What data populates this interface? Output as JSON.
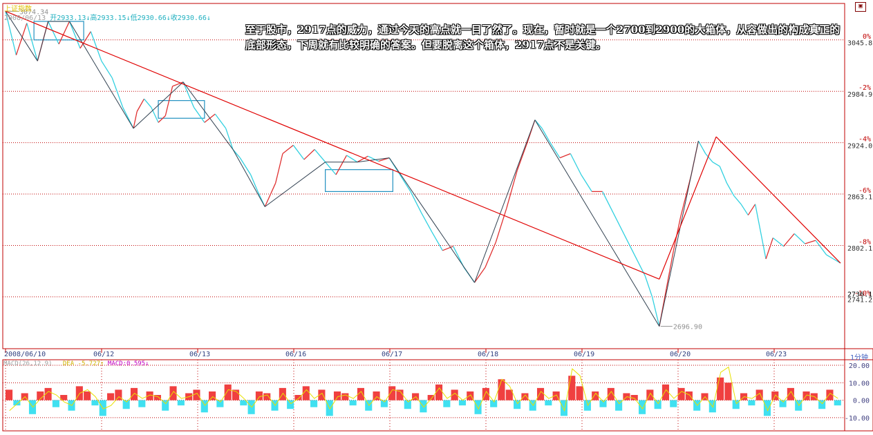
{
  "window": {
    "title": "上证指数",
    "header": {
      "date": "2008/06/13",
      "open": "开2933.13↓",
      "high": "高2933.15↓",
      "low": "低2930.66↓",
      "close": "收2930.66↓"
    },
    "restore_icon": "restore-icon"
  },
  "annotation_text": "至于股市，2917点的威力，通过今天的高点就一目了然了。现在，暂时就是一个2700到2900的大箱体，从容做出的构成真正的底部形态，下周就有比较明确的答案。但要脱离这个箱体，2917点不是关键。",
  "chart_data": {
    "type": "line",
    "title": "上证指数",
    "x_labels": [
      "2008/06/10",
      "06/12",
      "06/13",
      "06/16",
      "06/17",
      "06/18",
      "06/19",
      "06/20",
      "06/23"
    ],
    "y_price_labels": [
      "3045.8",
      "2984.9",
      "2924.0",
      "2863.1",
      "2802.1",
      "2741.2",
      "2736.1"
    ],
    "y_pct_labels": [
      "0%",
      "-2%",
      "-4%",
      "-6%",
      "-8%",
      "-10%"
    ],
    "annotations": {
      "high": "3074.34",
      "low": "2696.90"
    },
    "ylim": [
      2680,
      3080
    ],
    "price_path": [
      [
        0,
        3074
      ],
      [
        3,
        3022
      ],
      [
        6,
        3060
      ],
      [
        9,
        3015
      ],
      [
        12,
        3062
      ],
      [
        15,
        3035
      ],
      [
        18,
        3062
      ],
      [
        21,
        3030
      ],
      [
        24,
        3050
      ],
      [
        27,
        3015
      ],
      [
        30,
        2995
      ],
      [
        33,
        2960
      ],
      [
        36,
        2935
      ],
      [
        37,
        2955
      ],
      [
        39,
        2970
      ],
      [
        41,
        2960
      ],
      [
        43,
        2942
      ],
      [
        45,
        2950
      ],
      [
        47,
        2985
      ],
      [
        50,
        2990
      ],
      [
        53,
        2960
      ],
      [
        56,
        2942
      ],
      [
        59,
        2952
      ],
      [
        62,
        2935
      ],
      [
        64,
        2910
      ],
      [
        66,
        2900
      ],
      [
        69,
        2880
      ],
      [
        71,
        2860
      ],
      [
        73,
        2842
      ],
      [
        76,
        2870
      ],
      [
        78,
        2905
      ],
      [
        81,
        2915
      ],
      [
        84,
        2898
      ],
      [
        87,
        2910
      ],
      [
        90,
        2895
      ],
      [
        93,
        2880
      ],
      [
        96,
        2903
      ],
      [
        99,
        2895
      ],
      [
        102,
        2902
      ],
      [
        105,
        2896
      ],
      [
        108,
        2900
      ],
      [
        111,
        2880
      ],
      [
        114,
        2860
      ],
      [
        117,
        2835
      ],
      [
        120,
        2812
      ],
      [
        123,
        2790
      ],
      [
        126,
        2795
      ],
      [
        129,
        2770
      ],
      [
        132,
        2752
      ],
      [
        135,
        2770
      ],
      [
        138,
        2800
      ],
      [
        141,
        2840
      ],
      [
        144,
        2885
      ],
      [
        147,
        2920
      ],
      [
        149,
        2945
      ],
      [
        151,
        2935
      ],
      [
        153,
        2920
      ],
      [
        156,
        2900
      ],
      [
        159,
        2905
      ],
      [
        162,
        2880
      ],
      [
        165,
        2860
      ],
      [
        168,
        2860
      ],
      [
        171,
        2835
      ],
      [
        174,
        2810
      ],
      [
        177,
        2785
      ],
      [
        180,
        2760
      ],
      [
        182,
        2735
      ],
      [
        184,
        2700
      ],
      [
        186,
        2745
      ],
      [
        188,
        2790
      ],
      [
        190,
        2830
      ],
      [
        193,
        2880
      ],
      [
        195,
        2920
      ],
      [
        197,
        2905
      ],
      [
        199,
        2895
      ],
      [
        201,
        2890
      ],
      [
        203,
        2870
      ],
      [
        205,
        2855
      ],
      [
        207,
        2845
      ],
      [
        209,
        2832
      ],
      [
        211,
        2845
      ],
      [
        214,
        2780
      ],
      [
        216,
        2805
      ],
      [
        219,
        2795
      ],
      [
        222,
        2810
      ],
      [
        225,
        2798
      ],
      [
        228,
        2802
      ],
      [
        231,
        2785
      ],
      [
        233,
        2780
      ],
      [
        235,
        2775
      ]
    ],
    "trend_lines": [
      {
        "color": "#e00000",
        "points": [
          [
            0,
            3074
          ],
          [
            184,
            2756
          ]
        ]
      },
      {
        "color": "#e00000",
        "points": [
          [
            184,
            2756
          ],
          [
            200,
            2925
          ]
        ]
      },
      {
        "color": "#e00000",
        "points": [
          [
            200,
            2925
          ],
          [
            235,
            2775
          ]
        ]
      }
    ],
    "boxes": [
      {
        "x0": 8,
        "x1": 22,
        "y0": 3062,
        "y1": 3040
      },
      {
        "x0": 43,
        "x1": 56,
        "y0": 2968,
        "y1": 2947
      },
      {
        "x0": 90,
        "x1": 109,
        "y0": 2886,
        "y1": 2860
      }
    ],
    "macd": {
      "header_name": "MACD(26,12,9)",
      "dea_label": "DEA -5.727↑",
      "macd_label": "MACD:0.595↓",
      "y_labels": [
        "20.00",
        "10.00",
        "0.00",
        "-10.00"
      ],
      "ylim": [
        -16,
        22
      ],
      "bars": [
        6,
        -3,
        4,
        -8,
        5,
        7,
        -4,
        3,
        -6,
        8,
        5,
        -3,
        -9,
        4,
        6,
        -5,
        7,
        -4,
        5,
        3,
        -6,
        8,
        -3,
        4,
        6,
        -7,
        5,
        -4,
        9,
        6,
        -3,
        -8,
        5,
        4,
        -6,
        7,
        -5,
        3,
        8,
        -4,
        6,
        -9,
        5,
        4,
        -3,
        7,
        -6,
        5,
        -4,
        8,
        6,
        -5,
        4,
        -7,
        3,
        9,
        -4,
        6,
        -3,
        5,
        -8,
        7,
        -4,
        12,
        6,
        -5,
        4,
        -6,
        7,
        -3,
        5,
        -9,
        14,
        8,
        -6,
        5,
        -4,
        7,
        -6,
        4,
        3,
        -8,
        6,
        -5,
        9,
        -4,
        7,
        5,
        -6,
        4,
        -7,
        13,
        10,
        -5,
        4,
        -3,
        6,
        -9,
        5,
        -4,
        7,
        -6,
        5,
        4,
        -5,
        6,
        -3
      ],
      "dea": [
        -6,
        -2,
        2,
        -4,
        1,
        5,
        3,
        -1,
        -3,
        4,
        6,
        2,
        -5,
        -3,
        2,
        -1,
        4,
        1,
        3,
        2,
        -2,
        5,
        1,
        2,
        4,
        -3,
        2,
        -1,
        6,
        5,
        1,
        -4,
        2,
        3,
        -3,
        4,
        -2,
        1,
        6,
        1,
        4,
        -5,
        2,
        3,
        1,
        5,
        -3,
        2,
        -1,
        6,
        5,
        -1,
        2,
        -4,
        1,
        7,
        1,
        4,
        0,
        3,
        -5,
        5,
        -1,
        12,
        8,
        -2,
        3,
        -3,
        5,
        1,
        3,
        -6,
        18,
        14,
        -3,
        4,
        -1,
        5,
        -2,
        2,
        1,
        -5,
        4,
        -2,
        6,
        1,
        5,
        3,
        -3,
        2,
        -4,
        16,
        19,
        -2,
        2,
        1,
        4,
        -6,
        3,
        -1,
        5,
        -3,
        3,
        2,
        -2,
        4,
        1
      ]
    }
  }
}
